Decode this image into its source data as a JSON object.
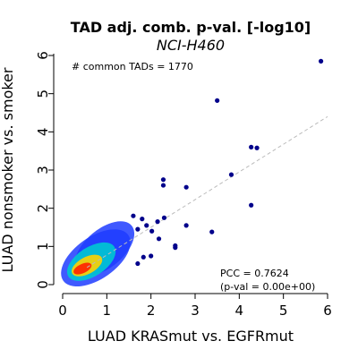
{
  "chart_data": {
    "type": "scatter",
    "title": "TAD adj. comb. p-val. [-log10]",
    "subtitle": "NCI-H460",
    "xlabel": "LUAD KRASmut vs. EGFRmut",
    "ylabel": "LUAD nonsmoker vs. smoker",
    "xlim": [
      0,
      6
    ],
    "ylim": [
      0,
      6
    ],
    "xticks": [
      "0",
      "1",
      "2",
      "3",
      "4",
      "5",
      "6"
    ],
    "yticks": [
      "0",
      "1",
      "2",
      "3",
      "4",
      "5",
      "6"
    ],
    "grid": false,
    "annotation_count": "# common TADs = 1770",
    "annotation_pcc": "PCC = 0.7624",
    "annotation_pval": "(p-val = 0.00e+00)",
    "colors": {
      "outlier": "#00008B",
      "density_low": "#1E3CFF",
      "density_mid": "#00C8D2",
      "density_high": "#FFD200",
      "density_max": "#FF2000",
      "fit_line": "#BBBBBB"
    },
    "outlier_points": [
      {
        "x": 5.85,
        "y": 5.85
      },
      {
        "x": 3.5,
        "y": 4.82
      },
      {
        "x": 4.27,
        "y": 3.6
      },
      {
        "x": 4.4,
        "y": 3.58
      },
      {
        "x": 3.82,
        "y": 2.88
      },
      {
        "x": 2.28,
        "y": 2.75
      },
      {
        "x": 2.28,
        "y": 2.6
      },
      {
        "x": 2.8,
        "y": 2.55
      },
      {
        "x": 4.27,
        "y": 2.08
      },
      {
        "x": 2.3,
        "y": 1.75
      },
      {
        "x": 2.15,
        "y": 1.65
      },
      {
        "x": 2.8,
        "y": 1.55
      },
      {
        "x": 3.38,
        "y": 1.38
      },
      {
        "x": 2.18,
        "y": 1.2
      },
      {
        "x": 2.55,
        "y": 1.02
      },
      {
        "x": 2.55,
        "y": 0.97
      },
      {
        "x": 2.0,
        "y": 0.75
      },
      {
        "x": 1.7,
        "y": 0.55
      },
      {
        "x": 1.83,
        "y": 0.72
      },
      {
        "x": 1.9,
        "y": 1.55
      },
      {
        "x": 1.8,
        "y": 1.72
      },
      {
        "x": 2.02,
        "y": 1.4
      },
      {
        "x": 1.6,
        "y": 1.8
      },
      {
        "x": 1.7,
        "y": 1.45
      }
    ],
    "density_cloud": {
      "layers": [
        {
          "level": "low",
          "cx": 0.75,
          "cy": 0.7,
          "rx": 0.9,
          "ry": 0.55,
          "angle_deg": 35
        },
        {
          "level": "low2",
          "cx": 0.95,
          "cy": 0.95,
          "rx": 0.8,
          "ry": 0.5,
          "angle_deg": 40
        },
        {
          "level": "mid",
          "cx": 0.65,
          "cy": 0.6,
          "rx": 0.62,
          "ry": 0.38,
          "angle_deg": 33
        },
        {
          "level": "high",
          "cx": 0.55,
          "cy": 0.5,
          "rx": 0.38,
          "ry": 0.22,
          "angle_deg": 28
        },
        {
          "level": "max",
          "cx": 0.45,
          "cy": 0.42,
          "rx": 0.22,
          "ry": 0.12,
          "angle_deg": 25
        }
      ]
    },
    "fit_line": {
      "x": [
        0.55,
        6.0
      ],
      "y": [
        0.45,
        4.4
      ]
    }
  }
}
